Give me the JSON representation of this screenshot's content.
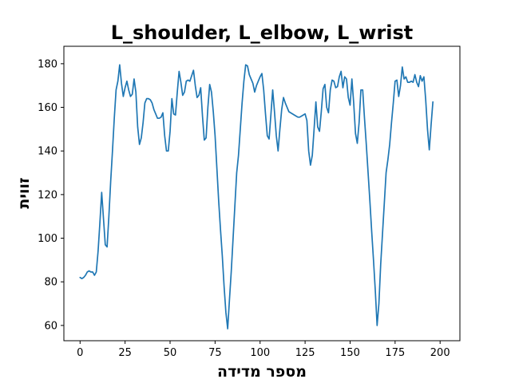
{
  "chart_data": {
    "type": "line",
    "title": "L_shoulder, L_elbow, L_wrist",
    "xlabel": "מספר מדידה",
    "ylabel": "זווית",
    "xlim": [
      -9,
      211
    ],
    "ylim": [
      53,
      188
    ],
    "xticks": [
      0,
      25,
      50,
      75,
      100,
      125,
      150,
      175,
      200
    ],
    "yticks": [
      60,
      80,
      100,
      120,
      140,
      160,
      180
    ],
    "grid": false,
    "legend": "none",
    "colors": {
      "line": "#1f77b4",
      "axes": "#000000",
      "background": "#ffffff"
    },
    "series": [
      {
        "values": [
          82,
          81.5,
          82,
          83,
          84.5,
          85,
          84.5,
          84.5,
          83,
          84.5,
          94,
          107,
          121,
          109,
          97,
          96,
          110,
          126,
          140,
          155,
          168,
          172,
          179.5,
          171,
          165,
          169,
          172,
          168,
          165,
          166,
          173,
          167,
          151,
          143,
          146,
          153,
          162,
          164,
          164,
          163.5,
          162,
          159,
          157,
          155,
          155,
          155.5,
          157.5,
          147,
          140,
          140,
          149,
          164,
          157,
          156.5,
          167,
          176.5,
          171.5,
          165.5,
          167,
          172,
          172.5,
          172,
          174.5,
          177,
          170,
          164.5,
          165.5,
          169,
          156,
          145,
          146,
          160,
          170.5,
          167,
          158,
          147,
          132,
          117,
          104,
          92,
          78,
          66,
          58.5,
          72,
          85,
          100,
          115,
          130,
          138,
          150,
          162,
          172,
          179.5,
          179,
          175,
          173,
          171,
          167,
          170,
          172,
          174,
          175.5,
          168,
          157,
          147,
          145.5,
          156.5,
          168,
          158,
          147,
          140,
          150,
          159,
          164.5,
          162,
          160,
          158,
          157.5,
          157,
          156.5,
          156,
          155.5,
          155.5,
          156,
          156.5,
          157,
          154,
          140,
          133.5,
          138,
          150,
          162.5,
          151,
          149,
          158,
          168.5,
          170.5,
          160,
          157.5,
          168,
          172.5,
          172,
          169,
          169.5,
          174,
          176.5,
          169,
          174,
          173,
          164.5,
          161,
          173,
          162,
          148,
          143.5,
          153,
          168,
          168,
          155,
          143,
          130,
          117,
          103,
          90,
          76,
          60,
          70,
          88,
          102,
          116,
          130,
          136,
          143,
          153,
          162,
          172,
          172.5,
          165,
          170,
          178.5,
          173,
          174,
          171.5,
          171.5,
          172,
          171.5,
          175,
          171.5,
          169.5,
          174.5,
          172,
          174,
          163.5,
          150,
          140.5,
          152,
          162.5
        ]
      }
    ]
  }
}
